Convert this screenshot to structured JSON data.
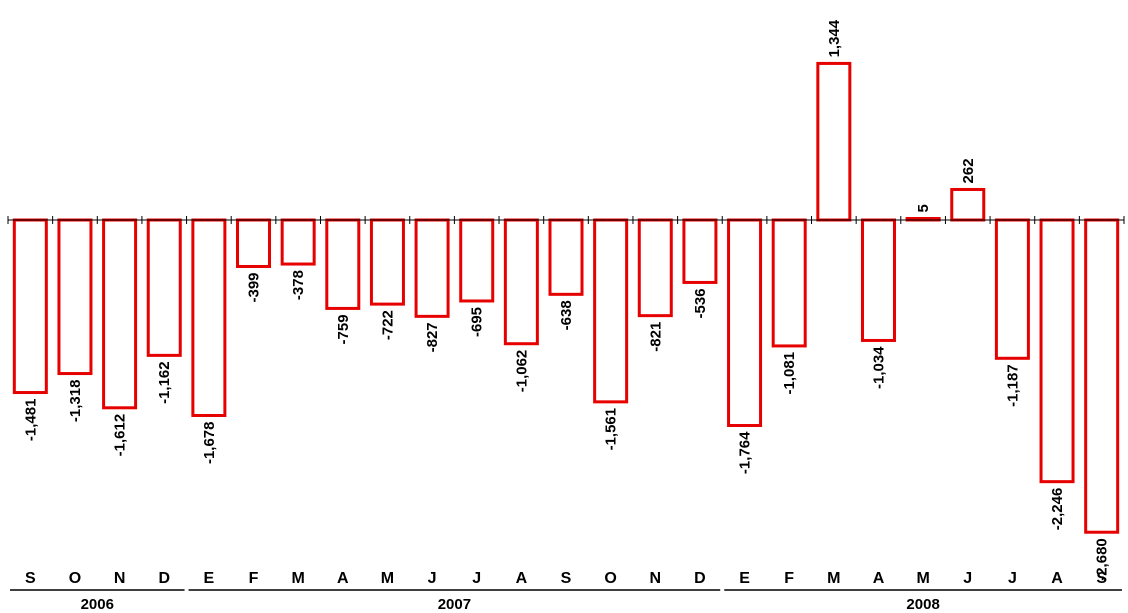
{
  "chart_data": {
    "type": "bar",
    "categories": [
      "S",
      "O",
      "N",
      "D",
      "E",
      "F",
      "M",
      "A",
      "M",
      "J",
      "J",
      "A",
      "S",
      "O",
      "N",
      "D",
      "E",
      "F",
      "M",
      "A",
      "M",
      "J",
      "J",
      "A",
      "S"
    ],
    "values": [
      -1481,
      -1318,
      -1612,
      -1162,
      -1678,
      -399,
      -378,
      -759,
      -722,
      -827,
      -695,
      -1062,
      -638,
      -1561,
      -821,
      -536,
      -1764,
      -1081,
      1344,
      -1034,
      5,
      262,
      -1187,
      -2246,
      -2680
    ],
    "value_labels": [
      "-1,481",
      "-1,318",
      "-1,612",
      "-1,162",
      "-1,678",
      "-399",
      "-378",
      "-759",
      "-722",
      "-827",
      "-695",
      "-1,062",
      "-638",
      "-1,561",
      "-821",
      "-536",
      "-1,764",
      "-1,081",
      "1,344",
      "-1,034",
      "5",
      "262",
      "-1,187",
      "-2,246",
      "-2,680"
    ],
    "year_groups": [
      {
        "label": "2006",
        "start": 0,
        "end": 3
      },
      {
        "label": "2007",
        "start": 4,
        "end": 15
      },
      {
        "label": "2008",
        "start": 16,
        "end": 24
      }
    ],
    "title": "",
    "xlabel": "",
    "ylabel": "",
    "bar_fill": "#ffffff",
    "bar_stroke": "#e60000",
    "grid": false,
    "legend": "none"
  }
}
